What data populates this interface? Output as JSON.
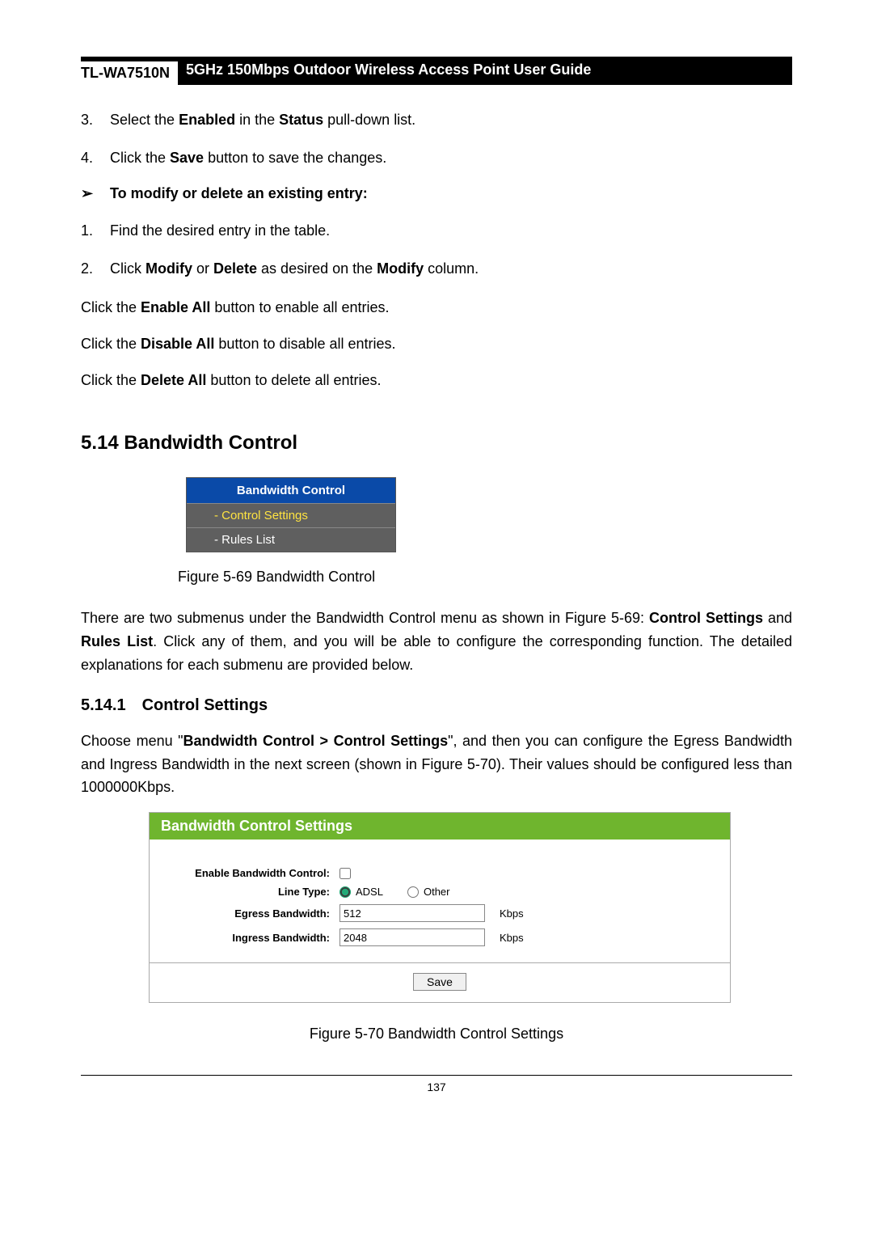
{
  "header": {
    "model": "TL-WA7510N",
    "title": "5GHz 150Mbps Outdoor Wireless Access Point User Guide"
  },
  "steps_a": [
    {
      "n": "3.",
      "parts": [
        "Select the ",
        "Enabled",
        " in the ",
        "Status",
        " pull-down list."
      ]
    },
    {
      "n": "4.",
      "parts": [
        "Click the ",
        "Save",
        " button to save the changes."
      ]
    }
  ],
  "subheading": "To modify or delete an existing entry:",
  "chevron": "➢",
  "steps_b": [
    {
      "n": "1.",
      "parts": [
        "Find the desired entry in the table."
      ]
    },
    {
      "n": "2.",
      "parts": [
        "Click ",
        "Modify",
        " or ",
        "Delete",
        " as desired on the ",
        "Modify",
        " column."
      ]
    }
  ],
  "paras": [
    [
      "Click the ",
      "Enable All",
      " button to enable all entries."
    ],
    [
      "Click the ",
      "Disable All",
      " button to disable all entries."
    ],
    [
      "Click the ",
      "Delete All",
      " button to delete all entries."
    ]
  ],
  "section": {
    "num": "5.14",
    "title": "Bandwidth Control"
  },
  "menu": {
    "title": "Bandwidth Control",
    "items": [
      {
        "label": "- Control Settings",
        "active": true
      },
      {
        "label": "- Rules List",
        "active": false
      }
    ]
  },
  "caption1": "Figure 5-69 Bandwidth Control",
  "para_intro": [
    "There are two submenus under the Bandwidth Control menu as shown in     Figure 5-69: ",
    "Control Settings",
    " and ",
    "Rules List",
    ". Click any of them, and you will be able to configure the corresponding function. The detailed explanations for each submenu are provided below."
  ],
  "subsection": {
    "num": "5.14.1",
    "title": "Control Settings"
  },
  "para_cs": [
    "Choose menu \"",
    "Bandwidth Control > Control Settings",
    "\", and then you can configure the Egress Bandwidth and Ingress Bandwidth in the next screen (shown in Figure 5-70). Their values should be configured less than 1000000Kbps."
  ],
  "panel": {
    "title": "Bandwidth Control Settings",
    "rows": {
      "enable_label": "Enable Bandwidth Control:",
      "enable_checked": false,
      "linetype_label": "Line Type:",
      "radios": [
        {
          "label": "ADSL",
          "checked": true
        },
        {
          "label": "Other",
          "checked": false
        }
      ],
      "egress_label": "Egress Bandwidth:",
      "egress_value": "512",
      "egress_unit": "Kbps",
      "ingress_label": "Ingress Bandwidth:",
      "ingress_value": "2048",
      "ingress_unit": "Kbps"
    },
    "save": "Save"
  },
  "caption2": "Figure 5-70 Bandwidth Control Settings",
  "page_number": "137",
  "colors": {
    "menu_header": "#0a4aa8",
    "menu_body": "#5f5f5f",
    "menu_active_text": "#ffe441",
    "panel_header": "#6fb52e"
  }
}
